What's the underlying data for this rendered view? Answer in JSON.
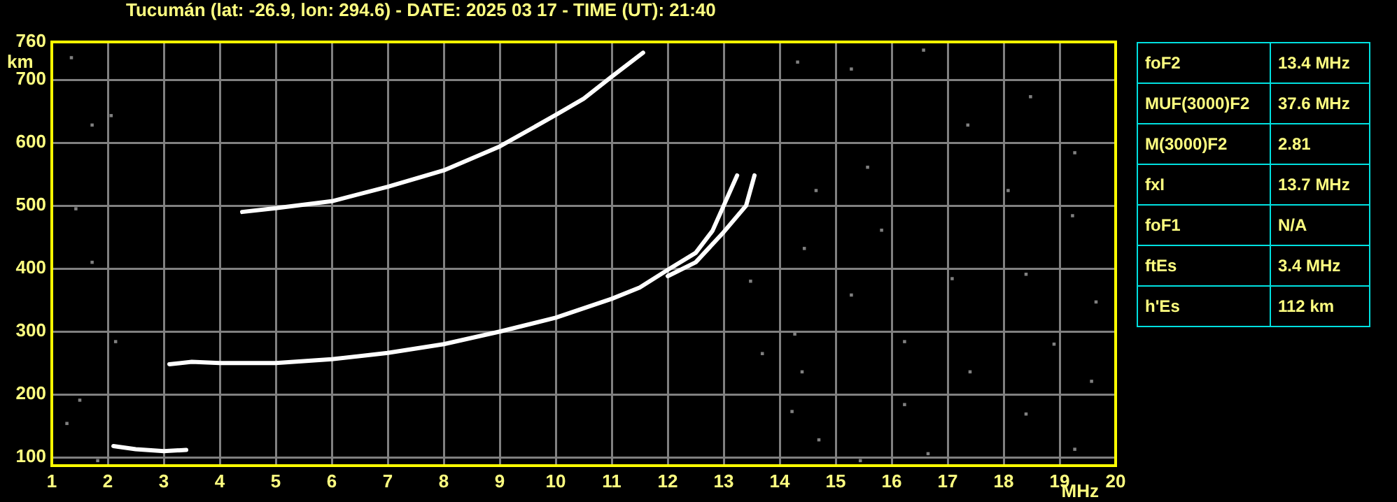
{
  "chart_data": {
    "type": "line",
    "title": "Tucumán (lat: -26.9, lon: 294.6) - DATE: 2025 03 17 - TIME (UT): 21:40",
    "xlabel": "MHz",
    "ylabel": "km",
    "xlim": [
      1,
      20
    ],
    "xticks": [
      1,
      2,
      3,
      4,
      5,
      6,
      7,
      8,
      9,
      10,
      11,
      12,
      13,
      14,
      15,
      16,
      17,
      18,
      19,
      20
    ],
    "ylim": [
      87,
      760
    ],
    "yticks": [
      100,
      200,
      300,
      400,
      500,
      600,
      700,
      760
    ],
    "grid": true,
    "legend": false,
    "line_style": "solid",
    "series": [
      {
        "color": "#ffffff",
        "marker": "none",
        "x": [
          2.1,
          2.5,
          3.0,
          3.4
        ],
        "values": [
          118,
          113,
          110,
          112
        ]
      },
      {
        "color": "#ffffff",
        "marker": "none",
        "x": [
          3.1,
          3.5,
          4,
          5,
          6,
          7,
          8,
          9,
          10,
          11,
          11.5,
          12,
          12.5,
          12.8,
          13.0,
          13.24
        ],
        "values": [
          248,
          252,
          250,
          250,
          256,
          266,
          280,
          300,
          322,
          352,
          370,
          398,
          425,
          460,
          500,
          548
        ]
      },
      {
        "color": "#ffffff",
        "marker": "none",
        "x": [
          12,
          12.5,
          13.0,
          13.4,
          13.55
        ],
        "values": [
          388,
          410,
          458,
          500,
          548
        ]
      },
      {
        "color": "#ffffff",
        "marker": "none",
        "x": [
          4.4,
          5,
          6,
          7,
          8,
          9,
          10,
          10.5,
          11,
          11.56
        ],
        "values": [
          490,
          496,
          507,
          530,
          556,
          594,
          644,
          670,
          705,
          743
        ]
      },
      {
        "type": "scatter",
        "color": "#808080",
        "marker": "square",
        "x": [
          1.35,
          1.72,
          2.06,
          1.72,
          1.43,
          2.14,
          1.5,
          1.27,
          1.82,
          14.32,
          15.28,
          16.57,
          18.48,
          19.27,
          15.57,
          17.36,
          14.65,
          18.08,
          19.23,
          15.82,
          14.44,
          13.48,
          15.28,
          17.08,
          18.4,
          19.65,
          13.69,
          16.23,
          18.9,
          14.4,
          17.4,
          19.57,
          14.22,
          16.23,
          18.4,
          14.7,
          16.65,
          19.27,
          15.44,
          14.27
        ],
        "values": [
          735,
          628,
          643,
          410,
          495,
          284,
          191,
          154,
          95,
          728,
          717,
          747,
          673,
          584,
          561,
          628,
          524,
          524,
          484,
          461,
          432,
          380,
          358,
          384,
          391,
          347,
          265,
          284,
          280,
          236,
          236,
          221,
          173,
          184,
          169,
          128,
          106,
          113,
          95,
          296
        ]
      }
    ],
    "annotations": [
      "foF2",
      "13.4 MHz",
      "MUF(3000)F2",
      "37.6 MHz",
      "M(3000)F2",
      "2.81",
      "fxI",
      "13.7 MHz",
      "foF1",
      "N/A",
      "ftEs",
      "3.4 MHz",
      "h'Es",
      "112 km"
    ]
  }
}
